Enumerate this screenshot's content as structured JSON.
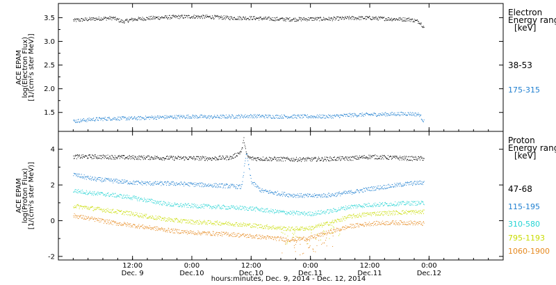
{
  "chart_data": [
    {
      "type": "scatter",
      "panel": "electron",
      "ylabel_lines": [
        "ACE EPAM",
        "log(Electron Flux)",
        "[1/(cm²s ster MeV)]"
      ],
      "ylim": [
        1.1,
        3.8
      ],
      "yticks": [
        "3.5",
        "3.0",
        "2.5",
        "2.0",
        "1.5"
      ],
      "ytick_values": [
        3.5,
        3.0,
        2.5,
        2.0,
        1.5
      ],
      "legend_title": [
        "Electron",
        "Energy ranges",
        "[keV]"
      ],
      "series": [
        {
          "name": "38-53",
          "color": "#000000",
          "x": [
            0,
            4,
            8,
            10,
            12,
            16,
            20,
            24,
            28,
            32,
            36,
            40,
            44,
            48,
            52,
            56,
            60,
            64,
            68,
            70,
            71
          ],
          "y": [
            3.45,
            3.48,
            3.5,
            3.42,
            3.47,
            3.5,
            3.52,
            3.53,
            3.52,
            3.5,
            3.5,
            3.48,
            3.47,
            3.48,
            3.48,
            3.5,
            3.5,
            3.48,
            3.47,
            3.42,
            3.3
          ]
        },
        {
          "name": "175-315",
          "color": "#1f7fd0",
          "x": [
            0,
            4,
            8,
            12,
            16,
            20,
            24,
            28,
            32,
            36,
            40,
            44,
            48,
            52,
            56,
            60,
            64,
            68,
            70,
            71
          ],
          "y": [
            1.32,
            1.36,
            1.38,
            1.38,
            1.4,
            1.41,
            1.42,
            1.41,
            1.42,
            1.43,
            1.42,
            1.42,
            1.42,
            1.42,
            1.45,
            1.46,
            1.47,
            1.48,
            1.46,
            1.3
          ]
        }
      ]
    },
    {
      "type": "scatter",
      "panel": "proton",
      "ylabel_lines": [
        "ACE EPAM",
        "log(Proton Flux)",
        "[1/(cm²s ster MeV)]"
      ],
      "ylim": [
        -2.2,
        5.0
      ],
      "yticks": [
        "4",
        "2",
        "0",
        "-2"
      ],
      "ytick_values": [
        4,
        2,
        0,
        -2
      ],
      "legend_title": [
        "Proton",
        "Energy ranges",
        "[keV]"
      ],
      "series": [
        {
          "name": "47-68",
          "color": "#000000",
          "x": [
            0,
            4,
            8,
            12,
            16,
            20,
            24,
            28,
            32,
            34,
            34.5,
            35,
            35.5,
            36,
            40,
            44,
            48,
            52,
            56,
            60,
            64,
            68,
            71
          ],
          "y": [
            3.6,
            3.6,
            3.58,
            3.55,
            3.55,
            3.52,
            3.52,
            3.5,
            3.55,
            3.9,
            4.6,
            3.7,
            3.55,
            3.5,
            3.48,
            3.45,
            3.45,
            3.48,
            3.5,
            3.6,
            3.55,
            3.5,
            3.5
          ]
        },
        {
          "name": "115-195",
          "color": "#1f7fd0",
          "x": [
            0,
            4,
            8,
            12,
            16,
            20,
            24,
            28,
            32,
            34,
            35,
            36,
            38,
            40,
            44,
            48,
            52,
            56,
            60,
            64,
            68,
            71
          ],
          "y": [
            2.6,
            2.35,
            2.25,
            2.15,
            2.1,
            2.1,
            2.05,
            2.0,
            1.95,
            1.9,
            3.8,
            2.2,
            1.7,
            1.6,
            1.45,
            1.4,
            1.45,
            1.6,
            1.8,
            1.95,
            2.1,
            2.15
          ]
        },
        {
          "name": "310-580",
          "color": "#22d3d3",
          "x": [
            0,
            4,
            8,
            12,
            16,
            20,
            24,
            28,
            32,
            36,
            40,
            44,
            48,
            52,
            56,
            60,
            64,
            68,
            71
          ],
          "y": [
            1.7,
            1.55,
            1.45,
            1.3,
            1.1,
            0.9,
            0.85,
            0.8,
            0.75,
            0.7,
            0.55,
            0.45,
            0.4,
            0.55,
            0.8,
            0.9,
            0.95,
            1.0,
            1.0
          ]
        },
        {
          "name": "795-1193",
          "color": "#c8dc00",
          "x": [
            0,
            4,
            8,
            12,
            16,
            20,
            24,
            28,
            32,
            36,
            40,
            44,
            48,
            52,
            56,
            60,
            64,
            68,
            71
          ],
          "y": [
            0.85,
            0.7,
            0.55,
            0.4,
            0.2,
            0.05,
            -0.05,
            -0.1,
            -0.15,
            -0.25,
            -0.35,
            -0.45,
            -0.4,
            -0.1,
            0.25,
            0.4,
            0.45,
            0.5,
            0.5
          ]
        },
        {
          "name": "1060-1900",
          "color": "#e6891e",
          "x": [
            0,
            4,
            8,
            12,
            16,
            20,
            24,
            28,
            32,
            36,
            40,
            44,
            48,
            52,
            56,
            60,
            64,
            68,
            71
          ],
          "y": [
            0.3,
            0.1,
            -0.1,
            -0.25,
            -0.4,
            -0.55,
            -0.65,
            -0.7,
            -0.75,
            -0.85,
            -0.95,
            -1.05,
            -0.95,
            -0.6,
            -0.3,
            -0.15,
            -0.1,
            -0.1,
            -0.15
          ]
        }
      ]
    }
  ],
  "x_axis": {
    "xlim_hours": [
      -3,
      87
    ],
    "ticks": [
      {
        "hour": 12,
        "time": "12:00",
        "date": "Dec. 9"
      },
      {
        "hour": 24,
        "time": "0:00",
        "date": "Dec.10"
      },
      {
        "hour": 36,
        "time": "12:00",
        "date": "Dec.10"
      },
      {
        "hour": 48,
        "time": "0:00",
        "date": "Dec.11"
      },
      {
        "hour": 60,
        "time": "12:00",
        "date": "Dec.11"
      },
      {
        "hour": 72,
        "time": "0:00",
        "date": "Dec.12"
      }
    ],
    "label": "hours:minutes, Dec.  9, 2014 - Dec. 12, 2014"
  }
}
